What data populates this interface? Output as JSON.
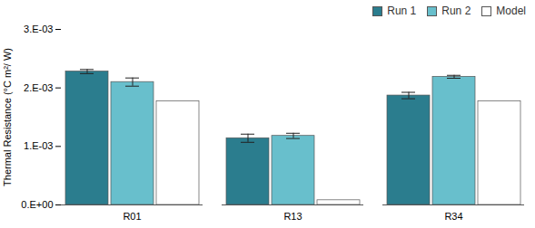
{
  "chart_data": {
    "type": "bar",
    "categories": [
      "R01",
      "R13",
      "R34"
    ],
    "series": [
      {
        "name": "Run 1",
        "color": "#2b7d8e",
        "values": [
          0.00228,
          0.00114,
          0.00187
        ],
        "errors": [
          3.5e-05,
          7e-05,
          5.5e-05
        ]
      },
      {
        "name": "Run 2",
        "color": "#68bfcc",
        "values": [
          0.0021,
          0.00118,
          0.00219
        ],
        "errors": [
          7e-05,
          4.5e-05,
          2.5e-05
        ]
      },
      {
        "name": "Model",
        "color": "#ffffff",
        "values": [
          0.00177,
          8e-05,
          0.00177
        ],
        "errors": [
          0,
          0,
          0
        ]
      }
    ],
    "ylabel": "Thermal Resistance (°C m²/ W)",
    "ylim": [
      0,
      0.003
    ],
    "yticks": [
      {
        "value": 0,
        "label": "0.E+00"
      },
      {
        "value": 0.001,
        "label": "1.E-03"
      },
      {
        "value": 0.002,
        "label": "2.E-03"
      },
      {
        "value": 0.003,
        "label": "3.E-03"
      }
    ],
    "grid": false,
    "legend": "upper right"
  }
}
